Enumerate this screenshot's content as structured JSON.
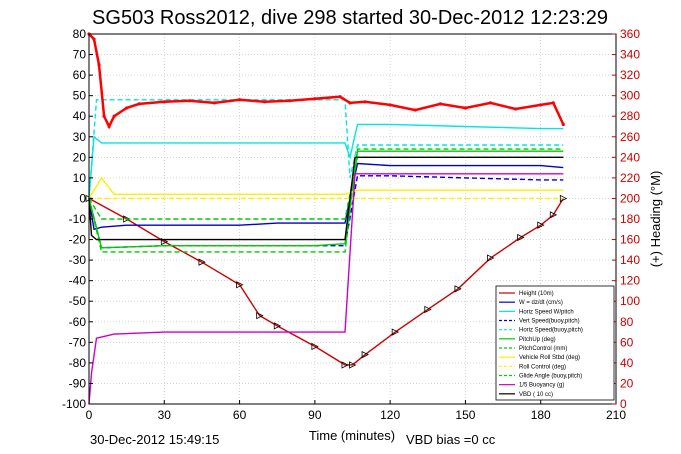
{
  "chart_data": {
    "type": "line",
    "title": "SG503 Ross2012, dive 298 started 30-Dec-2012 12:23:29",
    "xlabel": "Time (minutes)",
    "ylabel_right": "(+) Heading (°M)",
    "xlim": [
      0,
      210
    ],
    "ylim_left": [
      -100,
      80
    ],
    "ylim_right": [
      0,
      360
    ],
    "x_ticks": [
      0,
      30,
      60,
      90,
      120,
      150,
      180,
      210
    ],
    "y_ticks_left": [
      80,
      70,
      60,
      50,
      40,
      30,
      20,
      10,
      0,
      -10,
      -20,
      -30,
      -40,
      -50,
      -60,
      -70,
      -80,
      -90,
      -100
    ],
    "y_ticks_right": [
      360,
      340,
      320,
      300,
      280,
      260,
      240,
      220,
      200,
      180,
      160,
      140,
      120,
      100,
      80,
      60,
      40,
      20,
      0
    ],
    "grid": true,
    "legend_position": "bottom-right",
    "footer_left": "30-Dec-2012 15:49:15",
    "footer_right": "VBD bias =0 cc",
    "colors": {
      "heading": "#ff0000",
      "right_axis": "#cc0000",
      "height": "#cc0000",
      "w": "#0000cc",
      "horiz_speed": "#00e5e5",
      "pitch_up": "#00cc00",
      "roll": "#ffee00",
      "buoyancy": "#cc00cc",
      "vbd": "#000000"
    },
    "series": [
      {
        "name": "Height (10m)",
        "key": "height",
        "axis": "left",
        "style": "solid-marker",
        "x": [
          0,
          15,
          30,
          45,
          60,
          68,
          75,
          90,
          102,
          105,
          110,
          122,
          135,
          147,
          160,
          172,
          180,
          185,
          189
        ],
        "y": [
          0,
          -10,
          -21,
          -31,
          -42,
          -57,
          -62,
          -72,
          -81,
          -81,
          -76,
          -65,
          -54,
          -44,
          -29,
          -19,
          -13,
          -8,
          0
        ]
      },
      {
        "name": "W = dz/dt (cm/s)",
        "key": "w",
        "axis": "left",
        "style": "solid",
        "x": [
          0,
          2,
          5,
          15,
          30,
          45,
          60,
          75,
          90,
          102,
          104,
          107,
          120,
          150,
          180,
          189
        ],
        "y": [
          0,
          -15,
          -14,
          -13,
          -13,
          -13,
          -13,
          -12,
          -12,
          -12,
          0,
          17,
          16,
          16,
          16,
          15
        ]
      },
      {
        "name": "Horiz Speed W/pitch",
        "key": "horiz_speed",
        "axis": "left",
        "style": "solid",
        "x": [
          0,
          2,
          5,
          15,
          30,
          45,
          60,
          75,
          90,
          102,
          104,
          107,
          120,
          150,
          180,
          189
        ],
        "y": [
          0,
          30,
          27,
          27,
          27,
          27,
          27,
          27,
          27,
          27,
          20,
          36,
          36,
          35,
          34,
          34
        ]
      },
      {
        "name": "Vert Speed(buoy,pitch)",
        "key": "w",
        "axis": "left",
        "style": "dashed",
        "x": [
          0,
          5,
          30,
          60,
          90,
          102,
          107,
          120,
          150,
          180,
          189
        ],
        "y": [
          0,
          -24,
          -23,
          -23,
          -23,
          -23,
          11,
          11,
          10,
          9,
          9
        ]
      },
      {
        "name": "Horiz Speed(buoy,pitch)",
        "key": "horiz_speed",
        "axis": "left",
        "style": "dashed",
        "x": [
          0,
          3,
          30,
          60,
          90,
          102,
          104,
          107,
          150,
          189
        ],
        "y": [
          0,
          48,
          48,
          48,
          48,
          48,
          10,
          26,
          26,
          26
        ]
      },
      {
        "name": "PitchUp (deg)",
        "key": "pitch_up",
        "axis": "left",
        "style": "solid",
        "x": [
          0,
          5,
          30,
          60,
          90,
          102,
          107,
          150,
          189
        ],
        "y": [
          0,
          -24,
          -23,
          -23,
          -23,
          -22,
          23,
          23,
          23
        ]
      },
      {
        "name": "PitchControl (mm)",
        "key": "pitch_up",
        "axis": "left",
        "style": "dashed",
        "x": [
          0,
          5,
          60,
          102,
          107,
          189
        ],
        "y": [
          0,
          -10,
          -10,
          -10,
          20,
          20
        ]
      },
      {
        "name": "Vehicle Roll Stbd (deg)",
        "key": "roll",
        "axis": "left",
        "style": "solid",
        "x": [
          0,
          5,
          10,
          30,
          60,
          90,
          102,
          107,
          150,
          189
        ],
        "y": [
          0,
          10,
          2,
          2,
          2,
          2,
          2,
          4,
          4,
          4
        ]
      },
      {
        "name": "Roll Control (deg)",
        "key": "roll",
        "axis": "left",
        "style": "dashed",
        "x": [
          0,
          189
        ],
        "y": [
          0,
          0
        ]
      },
      {
        "name": "Glide Angle (buoy,pitch)",
        "key": "pitch_up",
        "axis": "left",
        "style": "dashed",
        "x": [
          0,
          5,
          60,
          102,
          107,
          189
        ],
        "y": [
          0,
          -26,
          -26,
          -26,
          24,
          24
        ]
      },
      {
        "name": "1/5 Buoyancy (g)",
        "key": "buoyancy",
        "axis": "left",
        "style": "solid",
        "x": [
          0,
          1,
          3,
          10,
          30,
          60,
          90,
          102,
          106,
          120,
          150,
          189
        ],
        "y": [
          -100,
          -85,
          -68,
          -66,
          -65,
          -65,
          -65,
          -65,
          12,
          12,
          12,
          12
        ]
      },
      {
        "name": "VBD ( 10 cc)",
        "key": "vbd",
        "axis": "left",
        "style": "solid",
        "x": [
          0,
          1,
          3,
          60,
          102,
          106,
          189
        ],
        "y": [
          0,
          -18,
          -20,
          -20,
          -20,
          20,
          20
        ]
      },
      {
        "name": "Heading",
        "key": "heading",
        "axis": "right",
        "style": "marker",
        "x": [
          0,
          2,
          4,
          6,
          8,
          10,
          15,
          20,
          30,
          40,
          50,
          60,
          70,
          80,
          90,
          100,
          104,
          110,
          120,
          130,
          140,
          150,
          160,
          170,
          180,
          185,
          189
        ],
        "y": [
          360,
          355,
          330,
          280,
          270,
          280,
          288,
          292,
          294,
          295,
          293,
          296,
          294,
          295,
          297,
          299,
          293,
          294,
          291,
          286,
          292,
          288,
          293,
          287,
          291,
          293,
          272
        ]
      }
    ]
  }
}
